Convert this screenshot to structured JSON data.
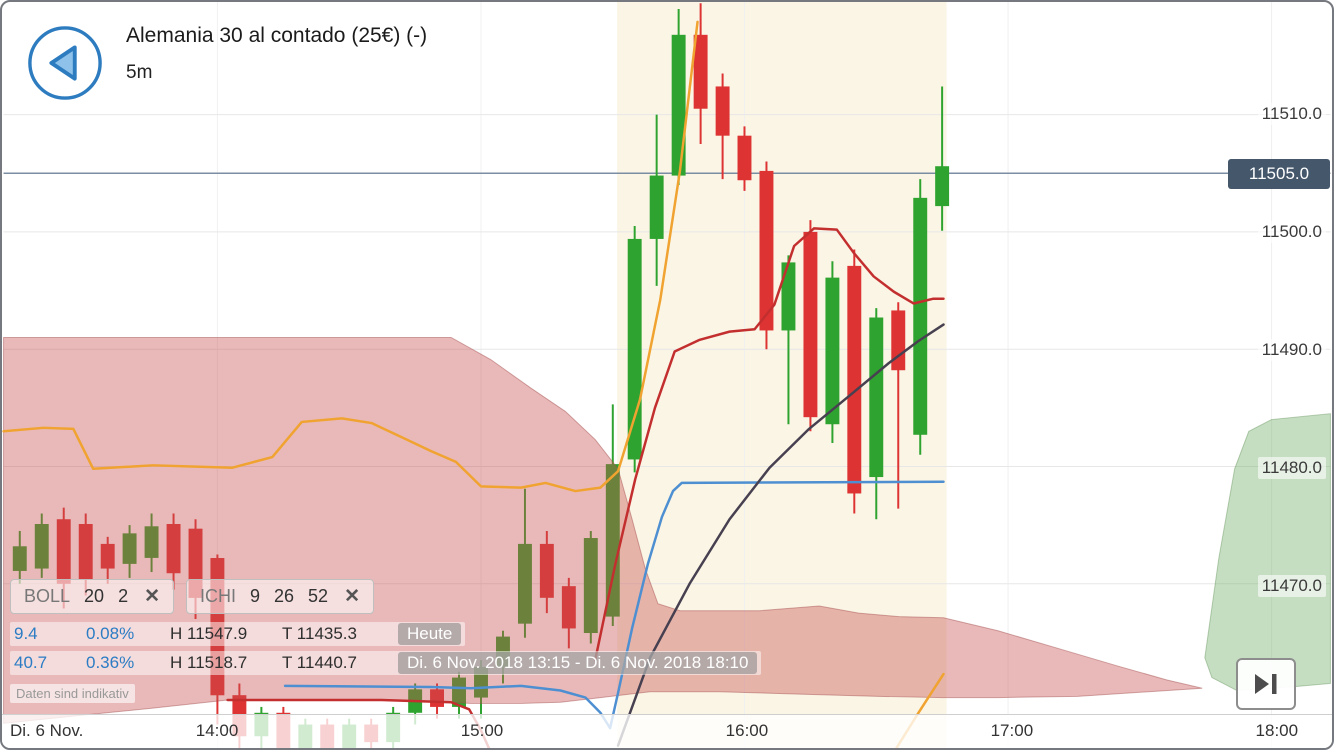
{
  "header": {
    "title": "Alemania 30 al contado (25€) (-)",
    "timeframe": "5m"
  },
  "indicators": [
    {
      "name": "BOLL",
      "params": [
        "20",
        "2"
      ],
      "close_label": "✕"
    },
    {
      "name": "ICHI",
      "params": [
        "9",
        "26",
        "52"
      ],
      "close_label": "✕"
    }
  ],
  "info_rows": [
    {
      "change": "9.4",
      "change_pct": "0.08%",
      "high": "H 11547.9",
      "low": "T 11435.3",
      "period": "Heute"
    },
    {
      "change": "40.7",
      "change_pct": "0.36%",
      "high": "H 11518.7",
      "low": "T 11440.7",
      "period": "Di. 6 Nov. 2018 13:15 - Di. 6 Nov. 2018 18:10"
    }
  ],
  "disclaimer": "Daten sind indikativ",
  "price_axis": {
    "ticks": [
      {
        "label": "11510.0",
        "price": 11510.0
      },
      {
        "label": "11500.0",
        "price": 11500.0
      },
      {
        "label": "11490.0",
        "price": 11490.0
      },
      {
        "label": "11480.0",
        "price": 11480.0
      },
      {
        "label": "11470.0",
        "price": 11470.0
      }
    ],
    "current": {
      "label": "11505.0",
      "price": 11505.0
    }
  },
  "time_axis": {
    "date_label": "Di. 6 Nov.",
    "ticks": [
      {
        "label": "14:00",
        "min": 0
      },
      {
        "label": "15:00",
        "min": 60
      },
      {
        "label": "16:00",
        "min": 120
      },
      {
        "label": "17:00",
        "min": 180
      },
      {
        "label": "18:00",
        "min": 240
      }
    ]
  },
  "colors": {
    "session_bg": "#fbf5e5",
    "grid_h": "#e7e7e7",
    "grid_v": "#f0f0f0",
    "candle_up": "#2fa32f",
    "candle_down": "#dd3333",
    "price_line": "#7b8da3",
    "badge_bg": "#44576b",
    "accent_blue": "#2e7cc0",
    "text_blue": "#2b7cc4"
  },
  "chart_data": {
    "type": "candlestick",
    "title": "Alemania 30 al contado (25€), 5m",
    "axes": {
      "x_unit": "minutes from 14:00",
      "x_range": [
        -48.7,
        253.4
      ],
      "y_unit": "price",
      "y_range": [
        11456.0,
        11519.6
      ]
    },
    "current_price": 11505.0,
    "session_highlight": {
      "from_min": 91.0,
      "to_min": 166.0
    },
    "candle_columns": [
      "min",
      "open",
      "high",
      "low",
      "close"
    ],
    "candles": [
      [
        -45,
        11471.1,
        11474.5,
        11470.0,
        11473.2
      ],
      [
        -40,
        11471.3,
        11476.0,
        11470.5,
        11475.1
      ],
      [
        -35,
        11475.5,
        11476.5,
        11467.9,
        11470.0
      ],
      [
        -30,
        11475.1,
        11476.0,
        11469.0,
        11470.4
      ],
      [
        -25,
        11473.4,
        11474.0,
        11470.0,
        11471.3
      ],
      [
        -20,
        11471.7,
        11475.0,
        11470.5,
        11474.3
      ],
      [
        -15,
        11472.2,
        11476.0,
        11471.0,
        11474.9
      ],
      [
        -10,
        11475.1,
        11476.0,
        11469.5,
        11470.9
      ],
      [
        -5,
        11474.7,
        11475.5,
        11467.0,
        11468.8
      ],
      [
        0,
        11472.2,
        11472.5,
        11458.0,
        11460.5
      ],
      [
        5,
        11460.5,
        11461.5,
        11455.0,
        11457.0
      ],
      [
        10,
        11457.0,
        11459.5,
        11455.5,
        11459.0
      ],
      [
        15,
        11459.0,
        11459.5,
        11454.5,
        11456.0
      ],
      [
        20,
        11456.0,
        11458.5,
        11455.0,
        11458.0
      ],
      [
        25,
        11458.0,
        11458.5,
        11453.0,
        11455.0
      ],
      [
        30,
        11455.0,
        11458.5,
        11454.0,
        11458.0
      ],
      [
        35,
        11458.0,
        11458.5,
        11455.5,
        11456.5
      ],
      [
        40,
        11456.5,
        11459.5,
        11456.0,
        11459.0
      ],
      [
        45,
        11459.0,
        11461.5,
        11458.0,
        11461.0
      ],
      [
        50,
        11461.0,
        11461.5,
        11458.5,
        11459.5
      ],
      [
        55,
        11459.5,
        11462.5,
        11458.5,
        11462.0
      ],
      [
        60,
        11460.3,
        11463.5,
        11458.5,
        11462.9
      ],
      [
        65,
        11462.9,
        11466.0,
        11461.5,
        11465.5
      ],
      [
        70,
        11466.6,
        11478.1,
        11465.4,
        11473.4
      ],
      [
        75,
        11473.4,
        11474.5,
        11467.5,
        11468.8
      ],
      [
        80,
        11469.8,
        11470.5,
        11464.5,
        11466.2
      ],
      [
        85,
        11465.8,
        11474.5,
        11464.9,
        11473.9
      ],
      [
        90,
        11467.2,
        11485.3,
        11466.4,
        11480.2
      ],
      [
        95,
        11480.6,
        11500.5,
        11479.5,
        11499.4
      ],
      [
        100,
        11499.4,
        11510.0,
        11495.4,
        11504.8
      ],
      [
        105,
        11504.8,
        11519.0,
        11504.0,
        11516.8
      ],
      [
        110,
        11516.8,
        11519.5,
        11507.5,
        11510.5
      ],
      [
        115,
        11512.4,
        11513.5,
        11504.5,
        11508.2
      ],
      [
        120,
        11508.2,
        11509.0,
        11503.5,
        11504.4
      ],
      [
        125,
        11505.2,
        11506.0,
        11490.0,
        11491.6
      ],
      [
        130,
        11491.6,
        11498.0,
        11483.6,
        11497.4
      ],
      [
        135,
        11500.0,
        11501.0,
        11483.0,
        11484.2
      ],
      [
        140,
        11483.6,
        11497.5,
        11482.0,
        11496.1
      ],
      [
        145,
        11497.1,
        11498.5,
        11476.0,
        11477.7
      ],
      [
        150,
        11479.1,
        11493.5,
        11475.5,
        11492.7
      ],
      [
        155,
        11493.3,
        11494.0,
        11476.4,
        11488.2
      ],
      [
        160,
        11482.7,
        11504.5,
        11481.0,
        11502.9
      ],
      [
        165,
        11502.2,
        11512.4,
        11500.1,
        11505.6
      ]
    ],
    "clouds": [
      {
        "name": "ichimoku-cloud-bearish",
        "color": "rgba(200,80,80,0.40)",
        "stroke": "rgba(160,70,70,0.45)",
        "points": [
          [
            -48.7,
            11491.0
          ],
          [
            53.2,
            11491.0
          ],
          [
            62.3,
            11489.1
          ],
          [
            71.3,
            11486.7
          ],
          [
            79.2,
            11484.7
          ],
          [
            86.0,
            11482.3
          ],
          [
            91.2,
            11479.8
          ],
          [
            94.4,
            11475.5
          ],
          [
            97.4,
            11471.3
          ],
          [
            100.3,
            11468.3
          ],
          [
            105.3,
            11467.7
          ],
          [
            123.4,
            11467.7
          ],
          [
            137.0,
            11468.1
          ],
          [
            146.0,
            11467.5
          ],
          [
            155.1,
            11467.2
          ],
          [
            165.3,
            11467.1
          ],
          [
            177.7,
            11466.0
          ],
          [
            191.3,
            11464.5
          ],
          [
            204.9,
            11463.0
          ],
          [
            216.2,
            11461.8
          ],
          [
            224.2,
            11461.1
          ],
          [
            195.8,
            11460.4
          ],
          [
            177.7,
            11460.3
          ],
          [
            165.3,
            11460.3
          ],
          [
            150.6,
            11460.4
          ],
          [
            132.5,
            11460.6
          ],
          [
            114.3,
            11460.8
          ],
          [
            98.5,
            11460.8
          ],
          [
            87.2,
            11460.3
          ],
          [
            78.1,
            11459.9
          ],
          [
            69.1,
            11459.8
          ],
          [
            57.7,
            11459.8
          ],
          [
            53.2,
            11459.9
          ],
          [
            41.9,
            11460.1
          ],
          [
            19.2,
            11460.1
          ],
          [
            2.3,
            11460.1
          ],
          [
            -14.7,
            11459.4
          ],
          [
            -30.6,
            11458.8
          ],
          [
            -48.7,
            11458.1
          ]
        ]
      },
      {
        "name": "ichimoku-cloud-bullish",
        "color": "rgba(110,170,100,0.40)",
        "stroke": "rgba(90,140,80,0.40)",
        "points": [
          [
            224.8,
            11463.7
          ],
          [
            228.0,
            11472.2
          ],
          [
            231.6,
            11479.8
          ],
          [
            234.8,
            11483.0
          ],
          [
            240.0,
            11484.0
          ],
          [
            253.4,
            11484.5
          ],
          [
            253.4,
            11461.5
          ],
          [
            241.1,
            11461.1
          ],
          [
            232.1,
            11460.9
          ],
          [
            226.4,
            11462.0
          ]
        ]
      }
    ],
    "lines": [
      {
        "name": "tenkan-sen-line",
        "color": "#f0a330",
        "width": 2.5,
        "points": [
          [
            -48.7,
            11483.0
          ],
          [
            -39.6,
            11483.3
          ],
          [
            -32.8,
            11483.2
          ],
          [
            -28.3,
            11479.8
          ],
          [
            -14.7,
            11480.1
          ],
          [
            3.4,
            11479.9
          ],
          [
            12.5,
            11480.8
          ],
          [
            19.2,
            11483.8
          ],
          [
            28.3,
            11484.1
          ],
          [
            35.1,
            11483.7
          ],
          [
            41.9,
            11482.5
          ],
          [
            48.7,
            11481.3
          ],
          [
            54.3,
            11480.4
          ],
          [
            60.0,
            11478.3
          ],
          [
            69.1,
            11478.2
          ],
          [
            74.7,
            11478.6
          ],
          [
            81.5,
            11477.9
          ],
          [
            87.2,
            11478.2
          ],
          [
            91.2,
            11479.6
          ],
          [
            96.2,
            11485.7
          ],
          [
            100.8,
            11494.2
          ],
          [
            105.3,
            11505.2
          ],
          [
            109.3,
            11517.9
          ]
        ]
      },
      {
        "name": "tenkan-sen-line-right",
        "color": "#f0a330",
        "width": 2.5,
        "points": [
          [
            154.6,
            11456.0
          ],
          [
            159.6,
            11459.0
          ],
          [
            165.3,
            11462.3
          ]
        ]
      },
      {
        "name": "kijun-sen-line",
        "color": "#c32f2f",
        "width": 2.5,
        "points": [
          [
            86.0,
            11463.5
          ],
          [
            90.6,
            11471.7
          ],
          [
            95.1,
            11478.9
          ],
          [
            99.6,
            11485.0
          ],
          [
            104.1,
            11489.8
          ],
          [
            109.8,
            11490.8
          ],
          [
            116.6,
            11491.5
          ],
          [
            122.3,
            11491.7
          ],
          [
            126.8,
            11493.8
          ],
          [
            131.3,
            11498.8
          ],
          [
            135.8,
            11500.3
          ],
          [
            141.0,
            11500.2
          ],
          [
            144.9,
            11498.2
          ],
          [
            149.4,
            11496.2
          ],
          [
            154.0,
            11494.9
          ],
          [
            158.5,
            11493.9
          ],
          [
            163.0,
            11494.3
          ],
          [
            165.3,
            11494.3
          ]
        ]
      },
      {
        "name": "kijun-sen-line-left",
        "color": "#c32f2f",
        "width": 2.5,
        "points": [
          [
            2.3,
            11460.1
          ],
          [
            37.4,
            11460.1
          ],
          [
            53.2,
            11459.9
          ],
          [
            57.3,
            11459.3
          ],
          [
            60.0,
            11457.5
          ],
          [
            61.8,
            11456.0
          ]
        ]
      },
      {
        "name": "bollinger-mid-line",
        "color": "#4d8fd1",
        "width": 2.5,
        "points": [
          [
            15.4,
            11461.3
          ],
          [
            48.7,
            11461.2
          ],
          [
            57.7,
            11461.1
          ],
          [
            69.1,
            11461.3
          ],
          [
            78.1,
            11460.9
          ],
          [
            83.8,
            11460.3
          ],
          [
            87.2,
            11459.0
          ],
          [
            89.4,
            11457.7
          ],
          [
            91.2,
            11460.7
          ],
          [
            94.4,
            11466.2
          ],
          [
            98.0,
            11471.7
          ],
          [
            101.2,
            11475.7
          ],
          [
            103.7,
            11477.9
          ],
          [
            105.7,
            11478.6
          ],
          [
            165.3,
            11478.7
          ]
        ]
      },
      {
        "name": "chikou-span-line",
        "color": "#474050",
        "width": 2.5,
        "points": [
          [
            91.2,
            11456.2
          ],
          [
            98.5,
            11463.7
          ],
          [
            107.5,
            11470.0
          ],
          [
            116.6,
            11475.5
          ],
          [
            125.7,
            11479.9
          ],
          [
            134.7,
            11483.2
          ],
          [
            143.8,
            11486.0
          ],
          [
            152.8,
            11488.8
          ],
          [
            159.6,
            11490.7
          ],
          [
            165.3,
            11492.1
          ]
        ]
      }
    ]
  }
}
